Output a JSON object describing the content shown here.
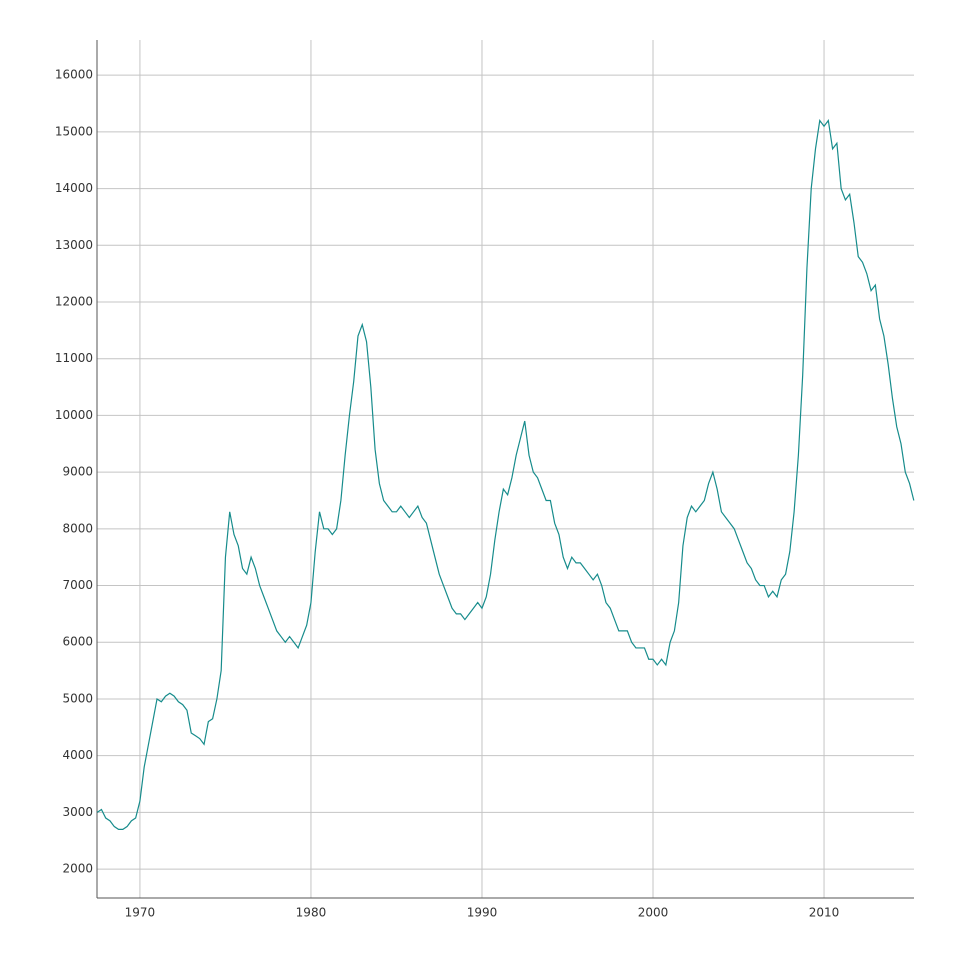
{
  "chart_data": {
    "type": "line",
    "x": [
      1967.5,
      1967.75,
      1968,
      1968.25,
      1968.5,
      1968.75,
      1969,
      1969.25,
      1969.5,
      1969.75,
      1970,
      1970.25,
      1970.5,
      1970.75,
      1971,
      1971.25,
      1971.5,
      1971.75,
      1972,
      1972.25,
      1972.5,
      1972.75,
      1973,
      1973.25,
      1973.5,
      1973.75,
      1974,
      1974.25,
      1974.5,
      1974.75,
      1975,
      1975.25,
      1975.5,
      1975.75,
      1976,
      1976.25,
      1976.5,
      1976.75,
      1977,
      1977.25,
      1977.5,
      1977.75,
      1978,
      1978.25,
      1978.5,
      1978.75,
      1979,
      1979.25,
      1979.5,
      1979.75,
      1980,
      1980.25,
      1980.5,
      1980.75,
      1981,
      1981.25,
      1981.5,
      1981.75,
      1982,
      1982.25,
      1982.5,
      1982.75,
      1983,
      1983.25,
      1983.5,
      1983.75,
      1984,
      1984.25,
      1984.5,
      1984.75,
      1985,
      1985.25,
      1985.5,
      1985.75,
      1986,
      1986.25,
      1986.5,
      1986.75,
      1987,
      1987.25,
      1987.5,
      1987.75,
      1988,
      1988.25,
      1988.5,
      1988.75,
      1989,
      1989.25,
      1989.5,
      1989.75,
      1990,
      1990.25,
      1990.5,
      1990.75,
      1991,
      1991.25,
      1991.5,
      1991.75,
      1992,
      1992.25,
      1992.5,
      1992.75,
      1993,
      1993.25,
      1993.5,
      1993.75,
      1994,
      1994.25,
      1994.5,
      1994.75,
      1995,
      1995.25,
      1995.5,
      1995.75,
      1996,
      1996.25,
      1996.5,
      1996.75,
      1997,
      1997.25,
      1997.5,
      1997.75,
      1998,
      1998.25,
      1998.5,
      1998.75,
      1999,
      1999.25,
      1999.5,
      1999.75,
      2000,
      2000.25,
      2000.5,
      2000.75,
      2001,
      2001.25,
      2001.5,
      2001.75,
      2002,
      2002.25,
      2002.5,
      2002.75,
      2003,
      2003.25,
      2003.5,
      2003.75,
      2004,
      2004.25,
      2004.5,
      2004.75,
      2005,
      2005.25,
      2005.5,
      2005.75,
      2006,
      2006.25,
      2006.5,
      2006.75,
      2007,
      2007.25,
      2007.5,
      2007.75,
      2008,
      2008.25,
      2008.5,
      2008.75,
      2009,
      2009.25,
      2009.5,
      2009.75,
      2010,
      2010.25,
      2010.5,
      2010.75,
      2011,
      2011.25,
      2011.5,
      2011.75,
      2012,
      2012.25,
      2012.5,
      2012.75,
      2013,
      2013.25,
      2013.5,
      2013.75,
      2014,
      2014.25,
      2014.5,
      2014.75,
      2015,
      2015.25
    ],
    "values": [
      3000,
      3050,
      2900,
      2850,
      2750,
      2700,
      2700,
      2750,
      2850,
      2900,
      3200,
      3800,
      4200,
      4600,
      5000,
      4950,
      5050,
      5100,
      5050,
      4950,
      4900,
      4800,
      4400,
      4350,
      4300,
      4200,
      4600,
      4650,
      5000,
      5500,
      7500,
      8300,
      7900,
      7700,
      7300,
      7200,
      7500,
      7300,
      7000,
      6800,
      6600,
      6400,
      6200,
      6100,
      6000,
      6100,
      6000,
      5900,
      6100,
      6300,
      6700,
      7600,
      8300,
      8000,
      8000,
      7900,
      8000,
      8500,
      9300,
      10000,
      10600,
      11400,
      11600,
      11300,
      10500,
      9400,
      8800,
      8500,
      8400,
      8300,
      8300,
      8400,
      8300,
      8200,
      8300,
      8400,
      8200,
      8100,
      7800,
      7500,
      7200,
      7000,
      6800,
      6600,
      6500,
      6500,
      6400,
      6500,
      6600,
      6700,
      6600,
      6800,
      7200,
      7800,
      8300,
      8700,
      8600,
      8900,
      9300,
      9600,
      9900,
      9300,
      9000,
      8900,
      8700,
      8500,
      8500,
      8100,
      7900,
      7500,
      7300,
      7500,
      7400,
      7400,
      7300,
      7200,
      7100,
      7200,
      7000,
      6700,
      6600,
      6400,
      6200,
      6200,
      6200,
      6000,
      5900,
      5900,
      5900,
      5700,
      5700,
      5600,
      5700,
      5600,
      6000,
      6200,
      6700,
      7700,
      8200,
      8400,
      8300,
      8400,
      8500,
      8800,
      9000,
      8700,
      8300,
      8200,
      8100,
      8000,
      7800,
      7600,
      7400,
      7300,
      7100,
      7000,
      7000,
      6800,
      6900,
      6800,
      7100,
      7200,
      7600,
      8300,
      9300,
      10700,
      12600,
      14000,
      14700,
      15200,
      15100,
      15200,
      14700,
      14800,
      14000,
      13800,
      13900,
      13400,
      12800,
      12700,
      12500,
      12200,
      12300,
      11700,
      11400,
      10900,
      10300,
      9800,
      9500,
      9000,
      8800,
      8500
    ],
    "color": "#178c8c",
    "xlim": [
      1967.49,
      2015.26
    ],
    "xticks": [
      1970,
      1980,
      1990,
      2000,
      2010
    ],
    "ylim": [
      1490,
      16620
    ],
    "yticks": [
      2000,
      3000,
      4000,
      5000,
      6000,
      7000,
      8000,
      9000,
      10000,
      11000,
      12000,
      13000,
      14000,
      15000,
      16000
    ],
    "grid": true
  }
}
